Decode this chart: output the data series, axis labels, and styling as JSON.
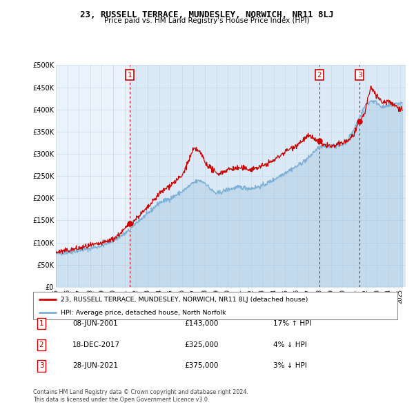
{
  "title": "23, RUSSELL TERRACE, MUNDESLEY, NORWICH, NR11 8LJ",
  "subtitle": "Price paid vs. HM Land Registry's House Price Index (HPI)",
  "ylabel_ticks": [
    "£0",
    "£50K",
    "£100K",
    "£150K",
    "£200K",
    "£250K",
    "£300K",
    "£350K",
    "£400K",
    "£450K",
    "£500K"
  ],
  "ylim": [
    0,
    500000
  ],
  "xlim_start": 1995.0,
  "xlim_end": 2025.5,
  "legend_line1": "23, RUSSELL TERRACE, MUNDESLEY, NORWICH, NR11 8LJ (detached house)",
  "legend_line2": "HPI: Average price, detached house, North Norfolk",
  "transactions": [
    {
      "num": 1,
      "date": "08-JUN-2001",
      "price": 143000,
      "hpi_diff": "17% ↑ HPI",
      "x": 2001.44
    },
    {
      "num": 2,
      "date": "18-DEC-2017",
      "price": 325000,
      "hpi_diff": "4% ↓ HPI",
      "x": 2017.96
    },
    {
      "num": 3,
      "date": "28-JUN-2021",
      "price": 375000,
      "hpi_diff": "3% ↓ HPI",
      "x": 2021.49
    }
  ],
  "footnote1": "Contains HM Land Registry data © Crown copyright and database right 2024.",
  "footnote2": "This data is licensed under the Open Government Licence v3.0.",
  "hpi_color": "#7bafd4",
  "hpi_fill_color": "#dce9f5",
  "price_color": "#cc0000",
  "marker_color": "#cc0000",
  "bg_color": "#ffffff",
  "grid_color": "#c8d8e8",
  "chart_bg": "#eaf2fb"
}
